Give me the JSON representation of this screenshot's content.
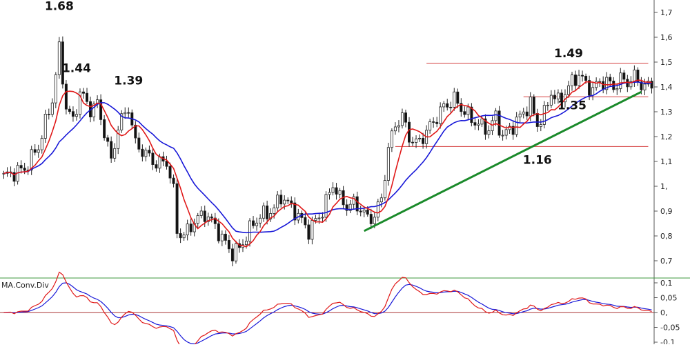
{
  "chart_data": [
    {
      "type": "candlestick",
      "panel": "price",
      "y_axis": {
        "ticks": [
          0.7,
          0.8,
          0.9,
          1.0,
          1.1,
          1.2,
          1.3,
          1.4,
          1.5,
          1.6,
          1.7
        ],
        "tick_labels": [
          "0,7",
          "0,8",
          "0,9",
          "1,",
          "1,1",
          "1,2",
          "1,3",
          "1,4",
          "1,5",
          "1,6",
          "1,7"
        ],
        "ylim": [
          0.65,
          1.75
        ],
        "side": "right"
      },
      "annotations": [
        {
          "text": "1.68",
          "bar": 16,
          "price": 1.71
        },
        {
          "text": "1.44",
          "bar": 21,
          "price": 1.46
        },
        {
          "text": "1.39",
          "bar": 36,
          "price": 1.41
        },
        {
          "text": "1.49",
          "bar": 163,
          "price": 1.52
        },
        {
          "text": "1.35",
          "bar": 164,
          "price": 1.31
        },
        {
          "text": "1.16",
          "bar": 154,
          "price": 1.09
        }
      ],
      "levels": [
        {
          "price": 1.495,
          "from_bar": 122,
          "to_bar": 186,
          "color": "#d43c3c"
        },
        {
          "price": 1.16,
          "from_bar": 113,
          "to_bar": 186,
          "color": "#d43c3c"
        },
        {
          "price": 1.36,
          "from_bar": 150,
          "to_bar": 186,
          "color": "#d43c3c"
        }
      ],
      "trendline": {
        "from_bar": 104,
        "from_price": 0.82,
        "to_bar": 184,
        "to_price": 1.38,
        "color": "#1a8a2a"
      },
      "series_colors": {
        "fast_ma": "#e01818",
        "slow_ma": "#1818d8",
        "candle_body": "#ffffff",
        "candle_fill": "#111111"
      }
    },
    {
      "type": "line",
      "panel": "indicator",
      "name": "MA.Conv.Div",
      "y_axis": {
        "ticks": [
          0.1,
          0.05,
          0.0,
          -0.05,
          -0.1
        ],
        "tick_labels": [
          "0,1",
          "0,05",
          "0,",
          "-0,05",
          "-0,1"
        ],
        "ylim": [
          -0.11,
          0.11
        ],
        "side": "right"
      },
      "zero_line_color": "#a83232",
      "series_colors": {
        "main": "#e01818",
        "signal": "#1818d8"
      }
    }
  ]
}
